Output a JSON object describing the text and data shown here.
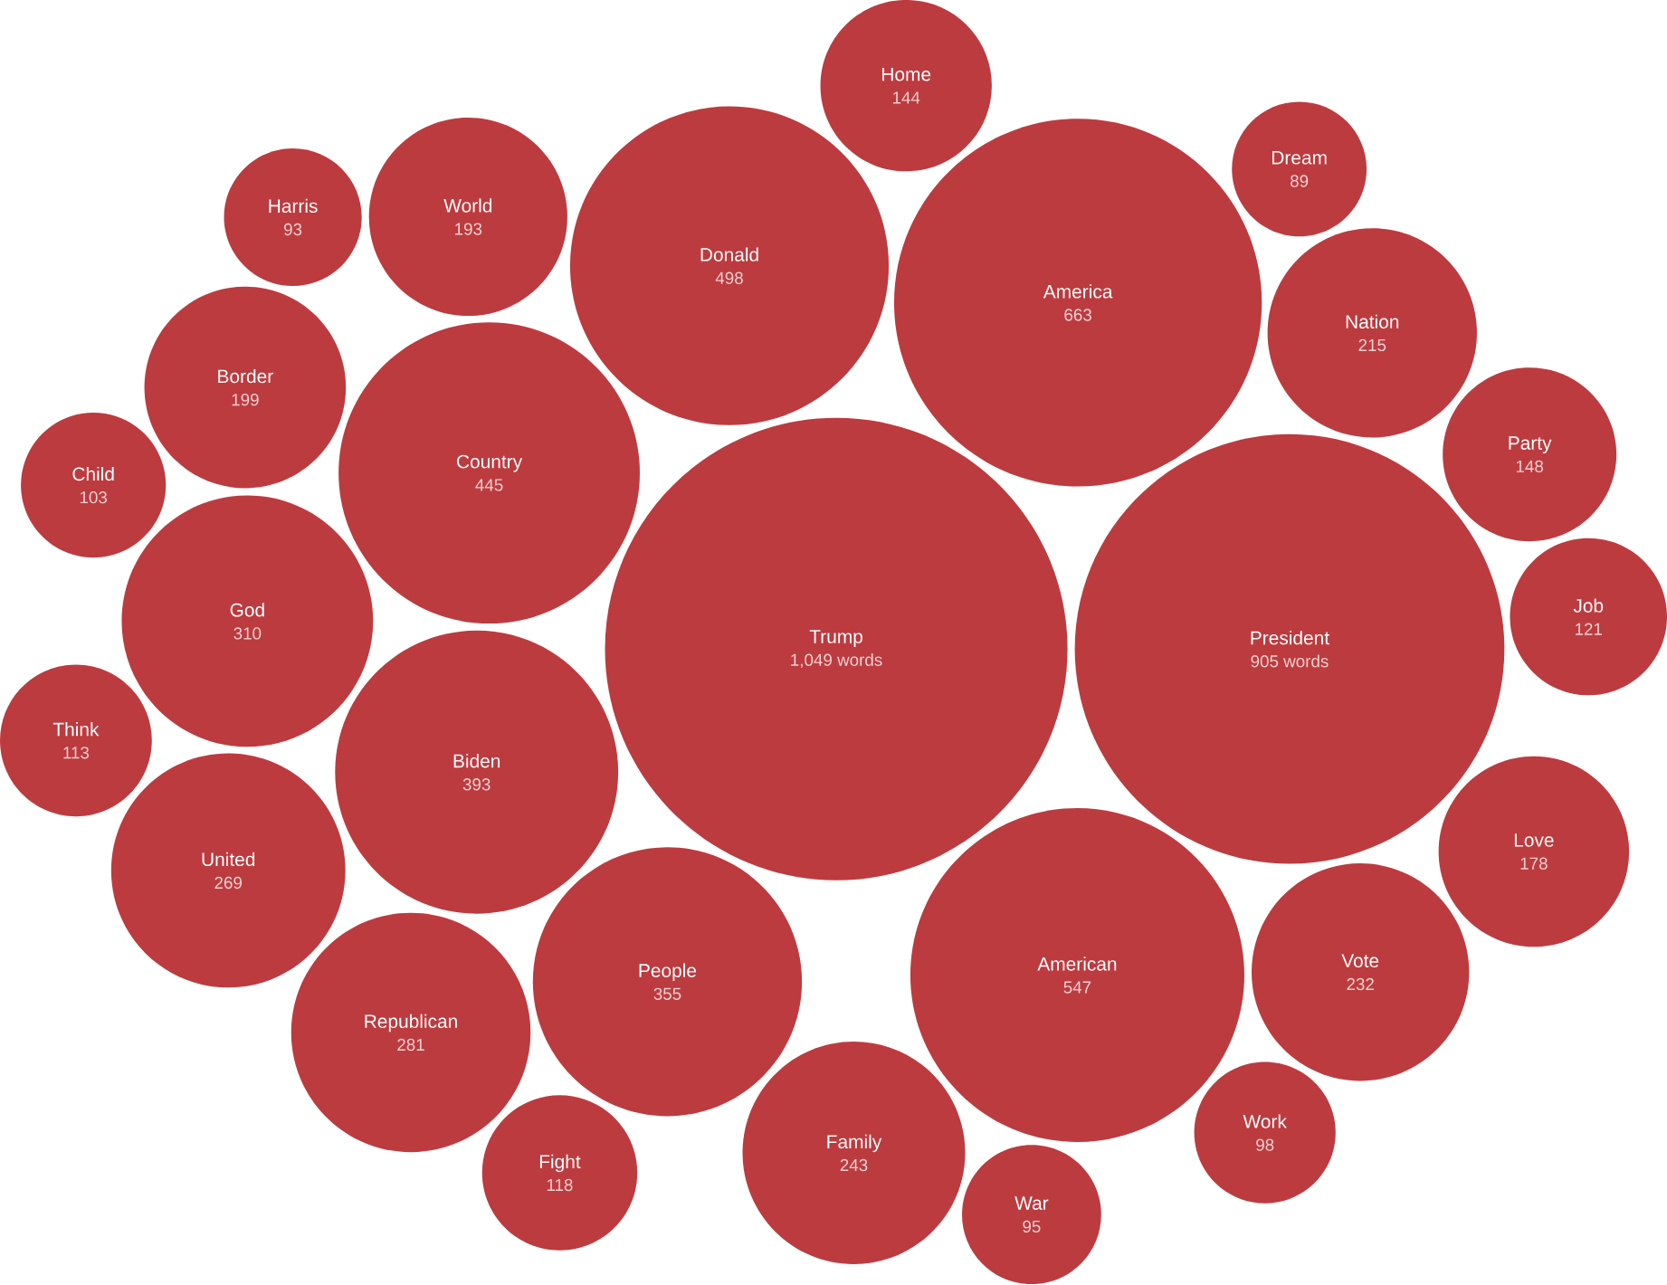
{
  "chart_data": {
    "type": "other",
    "color": "#bc3b3f",
    "categories": [
      "Love",
      "Child",
      "Vote",
      "Nation",
      "Think",
      "Harris",
      "Fight",
      "Donald",
      "American",
      "Biden",
      "Home",
      "God",
      "United",
      "War",
      "Border",
      "Trump",
      "President",
      "World",
      "Work",
      "Republican",
      "Family",
      "Dream",
      "Job",
      "Country",
      "America",
      "People",
      "Party"
    ],
    "values": [
      178,
      103,
      232,
      215,
      113,
      93,
      118,
      498,
      547,
      393,
      144,
      310,
      269,
      95,
      199,
      1049,
      905,
      193,
      98,
      281,
      243,
      89,
      121,
      445,
      663,
      355,
      148
    ],
    "value_labels": [
      "178",
      "103",
      "232",
      "215",
      "113",
      "93",
      "118",
      "498",
      "547",
      "393",
      "144",
      "310",
      "269",
      "95",
      "199",
      "1,049 words",
      "905 words",
      "193",
      "98",
      "281",
      "243",
      "89",
      "121",
      "445",
      "663",
      "355",
      "148"
    ]
  }
}
